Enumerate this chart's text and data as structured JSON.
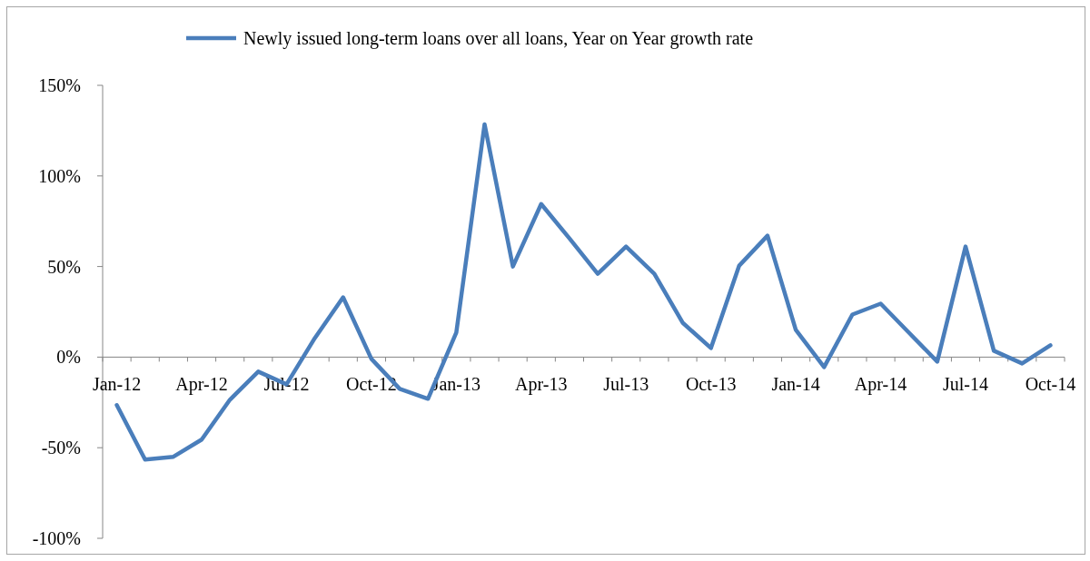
{
  "chart_data": {
    "type": "line",
    "legend": "top",
    "categories": [
      "Jan-12",
      null,
      null,
      "Apr-12",
      null,
      null,
      "Jul-12",
      null,
      null,
      "Oct-12",
      null,
      null,
      "Jan-13",
      null,
      null,
      "Apr-13",
      null,
      null,
      "Jul-13",
      null,
      null,
      "Oct-13",
      null,
      null,
      "Jan-14",
      null,
      null,
      "Apr-14",
      null,
      null,
      "Jul-14",
      null,
      null,
      "Oct-14"
    ],
    "series": [
      {
        "name": "Newly issued long-term loans over all loans, Year on Year growth rate",
        "color": "#4a7ebb",
        "values": [
          -26.5,
          -56.5,
          -55,
          -45.5,
          -23.5,
          -8,
          -15,
          10.5,
          33,
          -1,
          -17.5,
          -23,
          13.5,
          128.5,
          50,
          84.5,
          65.5,
          46,
          61,
          46,
          19,
          5,
          50.5,
          67,
          15,
          -5.5,
          23.5,
          29.5,
          13.5,
          -2.5,
          61,
          3.5,
          -3.5,
          6.5
        ]
      }
    ],
    "ylim": [
      -100,
      150
    ],
    "yticks": [
      {
        "value": -100,
        "label": "-100%"
      },
      {
        "value": -50,
        "label": "-50%"
      },
      {
        "value": 0,
        "label": "0%"
      },
      {
        "value": 50,
        "label": "50%"
      },
      {
        "value": 100,
        "label": "100%"
      },
      {
        "value": 150,
        "label": "150%"
      }
    ],
    "grid": false
  }
}
